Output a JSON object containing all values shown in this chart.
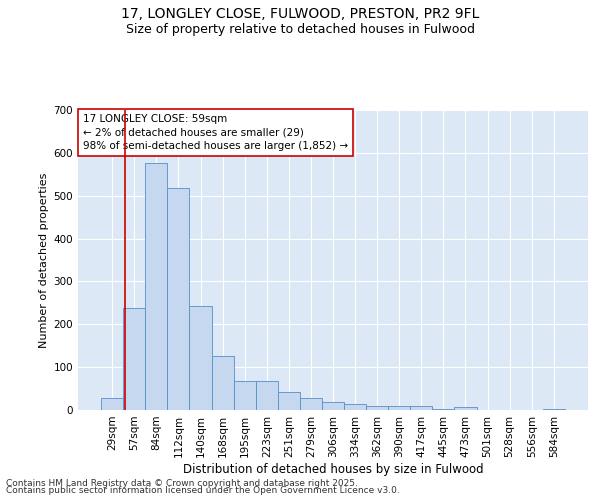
{
  "title1": "17, LONGLEY CLOSE, FULWOOD, PRESTON, PR2 9FL",
  "title2": "Size of property relative to detached houses in Fulwood",
  "xlabel": "Distribution of detached houses by size in Fulwood",
  "ylabel": "Number of detached properties",
  "categories": [
    "29sqm",
    "57sqm",
    "84sqm",
    "112sqm",
    "140sqm",
    "168sqm",
    "195sqm",
    "223sqm",
    "251sqm",
    "279sqm",
    "306sqm",
    "334sqm",
    "362sqm",
    "390sqm",
    "417sqm",
    "445sqm",
    "473sqm",
    "501sqm",
    "528sqm",
    "556sqm",
    "584sqm"
  ],
  "values": [
    29,
    237,
    577,
    518,
    242,
    127,
    67,
    67,
    43,
    28,
    18,
    14,
    10,
    10,
    10,
    3,
    7,
    0,
    0,
    0,
    2
  ],
  "bar_color": "#c5d8f0",
  "bar_edge_color": "#5590c8",
  "vline_color": "#cc0000",
  "vline_pos": 0.575,
  "annotation_text": "17 LONGLEY CLOSE: 59sqm\n← 2% of detached houses are smaller (29)\n98% of semi-detached houses are larger (1,852) →",
  "annotation_box_color": "#ffffff",
  "annotation_box_edge": "#cc0000",
  "ylim": [
    0,
    700
  ],
  "yticks": [
    0,
    100,
    200,
    300,
    400,
    500,
    600,
    700
  ],
  "background_color": "#dce8f5",
  "footer1": "Contains HM Land Registry data © Crown copyright and database right 2025.",
  "footer2": "Contains public sector information licensed under the Open Government Licence v3.0.",
  "title1_fontsize": 10,
  "title2_fontsize": 9,
  "xlabel_fontsize": 8.5,
  "ylabel_fontsize": 8,
  "tick_fontsize": 7.5,
  "annotation_fontsize": 7.5,
  "footer_fontsize": 6.5
}
